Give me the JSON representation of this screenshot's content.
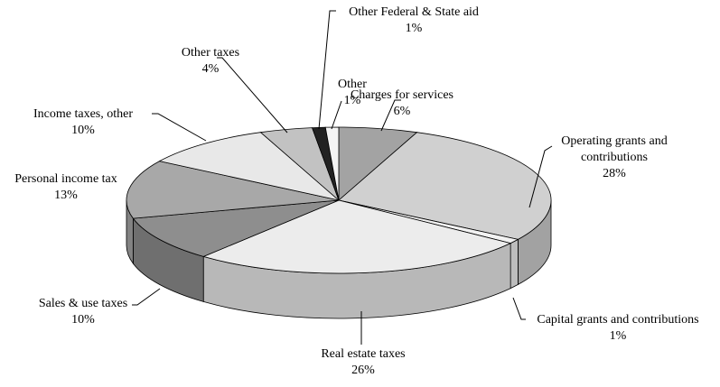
{
  "chart_data": {
    "type": "pie3d",
    "categories": [
      "Charges for services",
      "Operating grants and contributions",
      "Capital grants and contributions",
      "Real estate taxes",
      "Sales & use taxes",
      "Personal income tax",
      "Income taxes, other",
      "Other taxes",
      "Other Federal & State aid",
      "Other"
    ],
    "values": [
      6,
      28,
      1,
      26,
      10,
      13,
      10,
      4,
      1,
      1
    ],
    "value_labels": [
      "6%",
      "28%",
      "1%",
      "26%",
      "10%",
      "13%",
      "10%",
      "4%",
      "1%",
      "1%"
    ],
    "colors": [
      "#a3a3a3",
      "#d0d0d0",
      "#f2f2f2",
      "#ececec",
      "#8e8e8e",
      "#a8a8a8",
      "#e8e8e8",
      "#c2c2c2",
      "#222222",
      "#f4f4f4"
    ]
  }
}
